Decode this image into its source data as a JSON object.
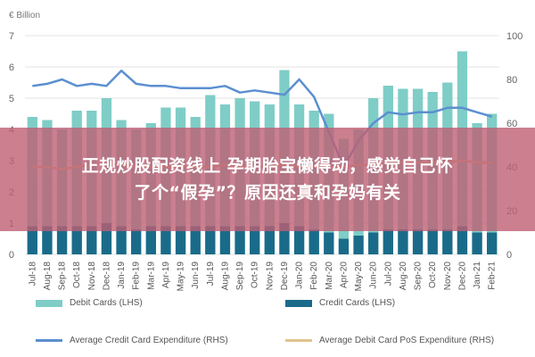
{
  "chart_data": {
    "type": "bar",
    "unit_label": "€ Billion",
    "categories": [
      "Jul-18",
      "Aug-18",
      "Sep-18",
      "Oct-18",
      "Nov-18",
      "Dec-18",
      "Jan-19",
      "Feb-19",
      "Mar-19",
      "Apr-19",
      "May-19",
      "Jun-19",
      "Jul-19",
      "Aug-19",
      "Sep-19",
      "Oct-19",
      "Nov-19",
      "Dec-19",
      "Jan-20",
      "Feb-20",
      "Mar-20",
      "Apr-20",
      "May-20",
      "Jun-20",
      "Jul-20",
      "Aug-20",
      "Sep-20",
      "Oct-20",
      "Nov-20",
      "Dec-20",
      "Jan-21",
      "Feb-21"
    ],
    "x_tick_labels": [
      "Jul-18",
      "Sep-18",
      "Nov-18",
      "Dec-18",
      "Feb-19",
      "Apr-19",
      "May-19",
      "Jul-19",
      "Aug-19",
      "Oct-19",
      "Dec-19",
      "Jan-20",
      "Mar-20",
      "May-20",
      "Jun-20",
      "Aug-20",
      "Oct-20",
      "Dec-20",
      "Feb-21"
    ],
    "x_tick_labels_2": [
      "Aug-18",
      "Oct-18",
      "Jan-19",
      "Mar-19",
      "Jun-19",
      "Sep-19",
      "Nov-19",
      "Feb-20",
      "Apr-20",
      "Jul-20",
      "Sep-20",
      "Nov-20",
      "Jan-21"
    ],
    "y_left": {
      "ticks": [
        "0",
        "1",
        "2",
        "3",
        "4",
        "5",
        "6",
        "7"
      ],
      "min": 0,
      "max": 7
    },
    "y_right": {
      "ticks": [
        "0",
        "20",
        "40",
        "60",
        "80",
        "100"
      ],
      "min": 0,
      "max": 100
    },
    "series": [
      {
        "name": "Debit Cards (LHS)",
        "kind": "bar",
        "axis": "left",
        "color": "#7fcdc7",
        "values": [
          4.4,
          4.3,
          4.0,
          4.6,
          4.6,
          5.0,
          4.3,
          4.0,
          4.2,
          4.7,
          4.7,
          4.4,
          5.1,
          4.8,
          5.0,
          4.9,
          4.8,
          5.9,
          4.8,
          4.6,
          4.5,
          3.7,
          4.0,
          5.0,
          5.4,
          5.3,
          5.3,
          5.2,
          5.5,
          6.5,
          4.2,
          4.5
        ]
      },
      {
        "name": "Credit Cards (LHS)",
        "kind": "bar",
        "axis": "left",
        "color": "#1a6b89",
        "values": [
          0.9,
          0.9,
          0.9,
          0.9,
          0.9,
          1.0,
          0.9,
          0.8,
          0.9,
          0.9,
          0.9,
          0.9,
          0.9,
          0.9,
          0.9,
          0.9,
          0.9,
          1.0,
          0.9,
          0.8,
          0.7,
          0.5,
          0.6,
          0.7,
          0.8,
          0.8,
          0.8,
          0.8,
          0.8,
          0.9,
          0.7,
          0.7
        ]
      },
      {
        "name": "Average Credit Card Expenditure (RHS)",
        "kind": "line",
        "axis": "right",
        "color": "#5b8fd0",
        "values": [
          77,
          78,
          80,
          77,
          78,
          77,
          84,
          78,
          77,
          77,
          76,
          76,
          76,
          77,
          74,
          75,
          74,
          73,
          80,
          72,
          56,
          40,
          52,
          60,
          65,
          64,
          65,
          65,
          67,
          67,
          65,
          63
        ]
      },
      {
        "name": "Average Debit Card PoS Expenditure (RHS)",
        "kind": "line",
        "axis": "right",
        "color": "#e0c48f",
        "values": [
          40,
          40,
          39,
          40,
          41,
          42,
          41,
          40,
          40,
          40,
          40,
          40,
          40,
          41,
          40,
          40,
          40,
          41,
          40,
          40,
          40,
          40,
          41,
          41,
          42,
          42,
          42,
          42,
          42,
          43,
          42,
          42
        ]
      }
    ]
  },
  "banner": {
    "line1": "正规炒股配资线上 孕期胎宝懒得动，感觉自己怀",
    "line2": "了个“假孕”？原因还真和孕妈有关"
  }
}
